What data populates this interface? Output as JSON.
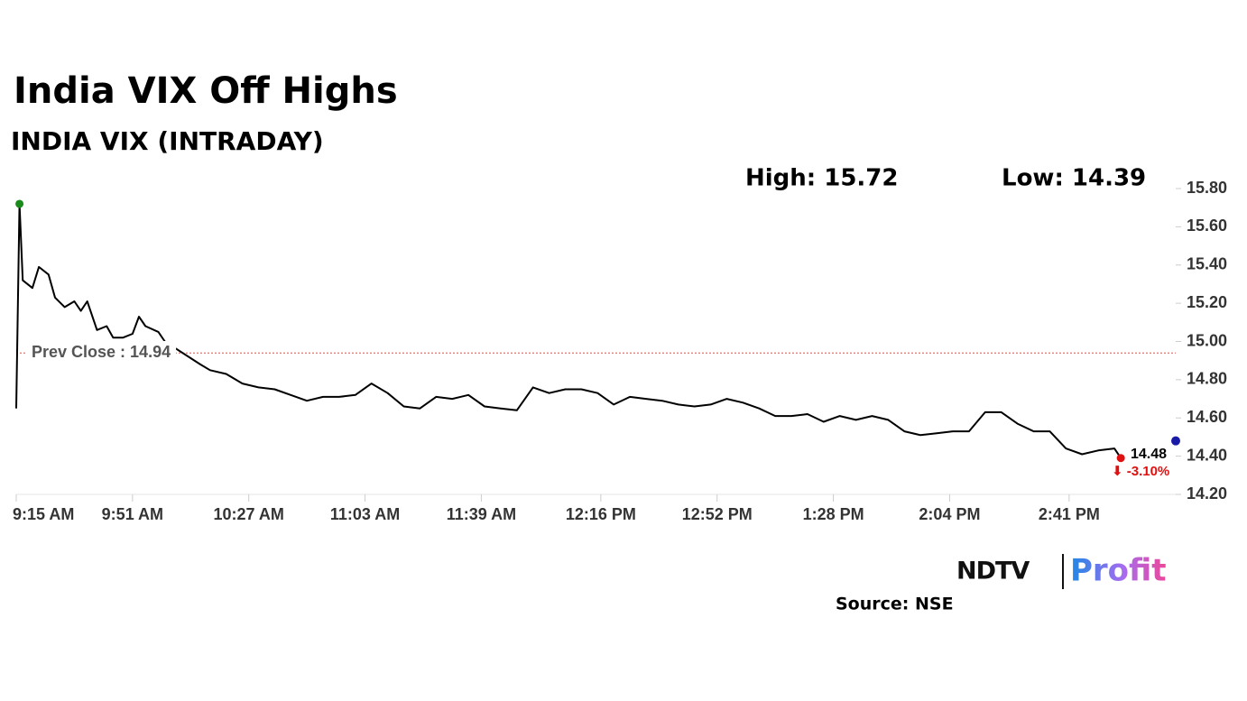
{
  "chart_data": {
    "type": "line",
    "title": "India VIX Off Highs",
    "subtitle": "INDIA VIX (INTRADAY)",
    "high_label": "High: 15.72",
    "low_label": "Low: 14.39",
    "x": [
      "9:15 AM",
      "9:16 AM",
      "9:17 AM",
      "9:20 AM",
      "9:22 AM",
      "9:25 AM",
      "9:27 AM",
      "9:30 AM",
      "9:33 AM",
      "9:35 AM",
      "9:37 AM",
      "9:40 AM",
      "9:43 AM",
      "9:45 AM",
      "9:48 AM",
      "9:51 AM",
      "9:53 AM",
      "9:55 AM",
      "9:59 AM",
      "10:01 AM",
      "10:12 AM",
      "10:15 AM",
      "10:20 AM",
      "10:25 AM",
      "10:30 AM",
      "10:35 AM",
      "10:40 AM",
      "10:45 AM",
      "10:50 AM",
      "10:55 AM",
      "11:00 AM",
      "11:05 AM",
      "11:10 AM",
      "11:15 AM",
      "11:20 AM",
      "11:25 AM",
      "11:30 AM",
      "11:35 AM",
      "11:40 AM",
      "11:45 AM",
      "11:50 AM",
      "11:55 AM",
      "12:00 PM",
      "12:05 PM",
      "12:10 PM",
      "12:15 PM",
      "12:20 PM",
      "12:25 PM",
      "12:30 PM",
      "12:35 PM",
      "12:40 PM",
      "12:45 PM",
      "12:50 PM",
      "12:55 PM",
      "1:00 PM",
      "1:05 PM",
      "1:10 PM",
      "1:15 PM",
      "1:20 PM",
      "1:25 PM",
      "1:30 PM",
      "1:35 PM",
      "1:40 PM",
      "1:45 PM",
      "1:50 PM",
      "1:55 PM",
      "2:00 PM",
      "2:05 PM",
      "2:10 PM",
      "2:15 PM",
      "2:20 PM",
      "2:25 PM",
      "2:30 PM",
      "2:35 PM",
      "2:40 PM",
      "2:45 PM",
      "2:50 PM",
      "2:55 PM",
      "2:57 PM"
    ],
    "series": [
      {
        "name": "India VIX",
        "color": "#000000",
        "values": [
          14.65,
          15.72,
          15.32,
          15.28,
          15.39,
          15.35,
          15.23,
          15.18,
          15.21,
          15.16,
          15.21,
          15.06,
          15.08,
          15.02,
          15.02,
          15.04,
          15.13,
          15.08,
          15.05,
          15.0,
          14.88,
          14.85,
          14.83,
          14.78,
          14.76,
          14.75,
          14.72,
          14.69,
          14.71,
          14.71,
          14.72,
          14.78,
          14.73,
          14.66,
          14.65,
          14.71,
          14.7,
          14.72,
          14.66,
          14.65,
          14.64,
          14.76,
          14.73,
          14.75,
          14.75,
          14.73,
          14.67,
          14.71,
          14.7,
          14.69,
          14.67,
          14.66,
          14.67,
          14.7,
          14.68,
          14.65,
          14.61,
          14.61,
          14.62,
          14.58,
          14.61,
          14.59,
          14.61,
          14.59,
          14.53,
          14.51,
          14.52,
          14.53,
          14.53,
          14.63,
          14.63,
          14.57,
          14.53,
          14.53,
          14.44,
          14.41,
          14.43,
          14.44,
          14.39
        ]
      }
    ],
    "xlim": [
      "9:15 AM",
      "3:14 PM"
    ],
    "xticks": [
      "9:15 AM",
      "9:51 AM",
      "10:27 AM",
      "11:03 AM",
      "11:39 AM",
      "12:16 PM",
      "12:52 PM",
      "1:28 PM",
      "2:04 PM",
      "2:41 PM"
    ],
    "ylim": [
      14.2,
      15.8
    ],
    "yticks": [
      {
        "value": 14.2,
        "label": "14.20"
      },
      {
        "value": 14.4,
        "label": "14.40"
      },
      {
        "value": 14.6,
        "label": "14.60"
      },
      {
        "value": 14.8,
        "label": "14.80"
      },
      {
        "value": 15.0,
        "label": "15.00"
      },
      {
        "value": 15.2,
        "label": "15.20"
      },
      {
        "value": 15.4,
        "label": "15.40"
      },
      {
        "value": 15.6,
        "label": "15.60"
      },
      {
        "value": 15.8,
        "label": "15.80"
      }
    ],
    "prev_close": {
      "value": 14.94,
      "label": "Prev Close : 14.94",
      "color": "#d9534f"
    },
    "current": {
      "value": 14.48,
      "label": "14.48",
      "color": "#1a1aa8"
    },
    "change_label": "⬇ -3.10%",
    "high_color": "#1a8a1a",
    "low_color": "#e01010",
    "logo": {
      "left": "NDTV",
      "right": "Profit"
    },
    "source": "Source: NSE"
  }
}
